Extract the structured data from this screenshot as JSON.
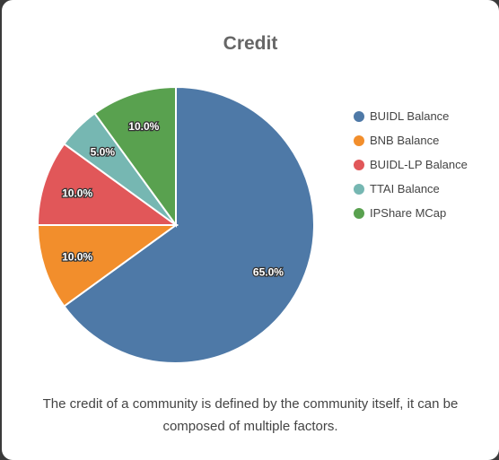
{
  "chart_data": {
    "type": "pie",
    "title": "Credit",
    "categories": [
      "BUIDL Balance",
      "BNB Balance",
      "BUIDL-LP Balance",
      "TTAI Balance",
      "IPShare MCap"
    ],
    "values": [
      65.0,
      10.0,
      10.0,
      5.0,
      10.0
    ],
    "data_labels": [
      "65.0%",
      "10.0%",
      "10.0%",
      "5.0%",
      "10.0%"
    ],
    "colors": [
      "#4e79a7",
      "#f28e2c",
      "#e15759",
      "#76b7b2",
      "#59a14f"
    ],
    "start_angle": "12 o'clock",
    "direction": "clockwise",
    "legend_position": "right"
  },
  "caption": "The credit of a community is defined by the community itself, it can be composed of multiple factors."
}
